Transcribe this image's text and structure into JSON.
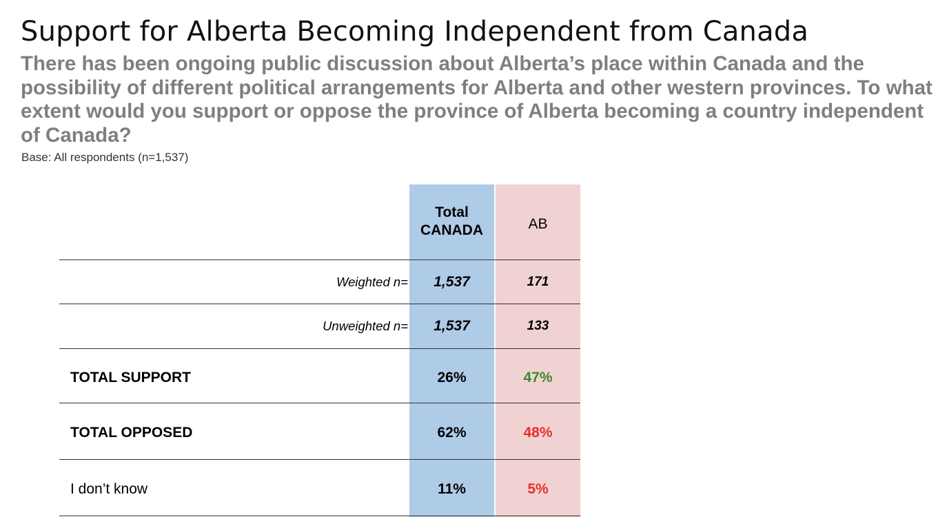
{
  "title": "Support for Alberta Becoming Independent from Canada",
  "question": "There has been ongoing public discussion about Alberta’s place within Canada and the possibility of different political arrangements for Alberta and other western provinces. To what extent would you support or oppose the province of Alberta becoming a country independent of Canada?",
  "base": "Base: All respondents (n=1,537)",
  "table": {
    "columns": [
      {
        "line1": "Total",
        "line2": "CANADA",
        "color": "#aecbe8"
      },
      {
        "label": "AB",
        "color": "#f1d2d2"
      }
    ],
    "sample_rows": [
      {
        "label": "Weighted n=",
        "total": "1,537",
        "ab": "171"
      },
      {
        "label": "Unweighted n=",
        "total": "1,537",
        "ab": "133"
      }
    ],
    "rows": [
      {
        "label": "TOTAL SUPPORT",
        "total": "26%",
        "ab": "47%",
        "ab_color": "#3a8a2e"
      },
      {
        "label": "TOTAL OPPOSED",
        "total": "62%",
        "ab": "48%",
        "ab_color": "#e8302a"
      },
      {
        "label": "I don’t know",
        "total": "11%",
        "ab": "5%",
        "ab_color": "#e8302a"
      }
    ]
  }
}
